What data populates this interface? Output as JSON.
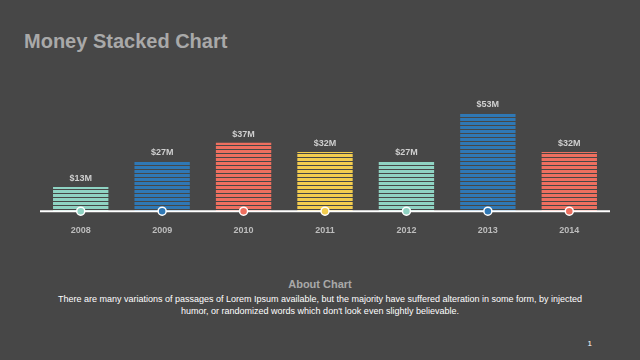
{
  "chart_data": {
    "type": "bar",
    "title": "Money Stacked Chart",
    "categories": [
      "2008",
      "2009",
      "2010",
      "2011",
      "2012",
      "2013",
      "2014"
    ],
    "values": [
      13,
      27,
      37,
      32,
      27,
      53,
      32
    ],
    "value_labels": [
      "$13M",
      "$27M",
      "$37M",
      "$32M",
      "$27M",
      "$53M",
      "$32M"
    ],
    "colors": [
      "#8fd3c3",
      "#2f78b5",
      "#ee6f5f",
      "#f3cd4f",
      "#8fd3c3",
      "#2f78b5",
      "#ee6f5f"
    ],
    "data_labels": true,
    "tick_labels": "x",
    "grid": false
  },
  "footer": {
    "heading": "About Chart",
    "text": "There are many variations of passages of Lorem Ipsum available, but the majority have suffered alteration in some form, by injected humor, or randomized words which don't look even slightly believable.",
    "page": "1"
  }
}
